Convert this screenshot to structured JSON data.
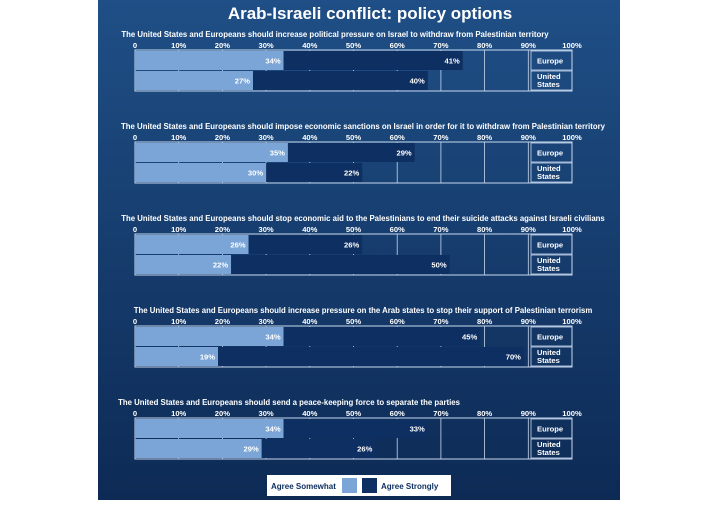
{
  "chart_data": {
    "type": "bar",
    "title": "Arab-Israeli conflict:  policy options",
    "ticks": [
      "0",
      "10%",
      "20%",
      "30%",
      "40%",
      "50%",
      "60%",
      "70%",
      "80%",
      "90%",
      "100%"
    ],
    "xlim": [
      0,
      100
    ],
    "series_names": [
      "Agree Somewhat",
      "Agree Strongly"
    ],
    "colors": {
      "background_top": "#1f4f86",
      "background_bottom": "#0d2a55",
      "agree_somewhat": "#7aa5d6",
      "agree_strongly": "#0e2f62",
      "grid": "#c8d8ee",
      "text": "#ffffff"
    },
    "panels": [
      {
        "question": "The United States and Europeans should increase political pressure on Israel to withdraw from Palestinian territory",
        "rows": [
          {
            "label_lines": [
              "Europe"
            ],
            "somewhat": 34,
            "strongly": 41,
            "somewhat_label": "34%",
            "strongly_label": "41%"
          },
          {
            "label_lines": [
              "United",
              "States"
            ],
            "somewhat": 27,
            "strongly": 40,
            "somewhat_label": "27%",
            "strongly_label": "40%"
          }
        ]
      },
      {
        "question": "The United States and Europeans should impose economic sanctions on Israel in order for it to withdraw from Palestinian territory",
        "rows": [
          {
            "label_lines": [
              "Europe"
            ],
            "somewhat": 35,
            "strongly": 29,
            "somewhat_label": "35%",
            "strongly_label": "29%"
          },
          {
            "label_lines": [
              "United",
              "States"
            ],
            "somewhat": 30,
            "strongly": 22,
            "somewhat_label": "30%",
            "strongly_label": "22%"
          }
        ]
      },
      {
        "question": "The United States and Europeans should stop economic aid to the Palestinians to end their suicide attacks against Israeli civilians",
        "rows": [
          {
            "label_lines": [
              "Europe"
            ],
            "somewhat": 26,
            "strongly": 26,
            "somewhat_label": "26%",
            "strongly_label": "26%"
          },
          {
            "label_lines": [
              "United",
              "States"
            ],
            "somewhat": 22,
            "strongly": 50,
            "somewhat_label": "22%",
            "strongly_label": "50%"
          }
        ]
      },
      {
        "question": "The United States and Europeans should increase pressure on the Arab states to stop their support of Palestinian terrorism",
        "rows": [
          {
            "label_lines": [
              "Europe"
            ],
            "somewhat": 34,
            "strongly": 45,
            "somewhat_label": "34%",
            "strongly_label": "45%"
          },
          {
            "label_lines": [
              "United",
              "States"
            ],
            "somewhat": 19,
            "strongly": 70,
            "somewhat_label": "19%",
            "strongly_label": "70%"
          }
        ]
      },
      {
        "question": "The United States and Europeans should send a peace-keeping force to separate the parties",
        "rows": [
          {
            "label_lines": [
              "Europe"
            ],
            "somewhat": 34,
            "strongly": 33,
            "somewhat_label": "34%",
            "strongly_label": "33%"
          },
          {
            "label_lines": [
              "United",
              "States"
            ],
            "somewhat": 29,
            "strongly": 26,
            "somewhat_label": "29%",
            "strongly_label": "26%"
          }
        ]
      }
    ]
  }
}
